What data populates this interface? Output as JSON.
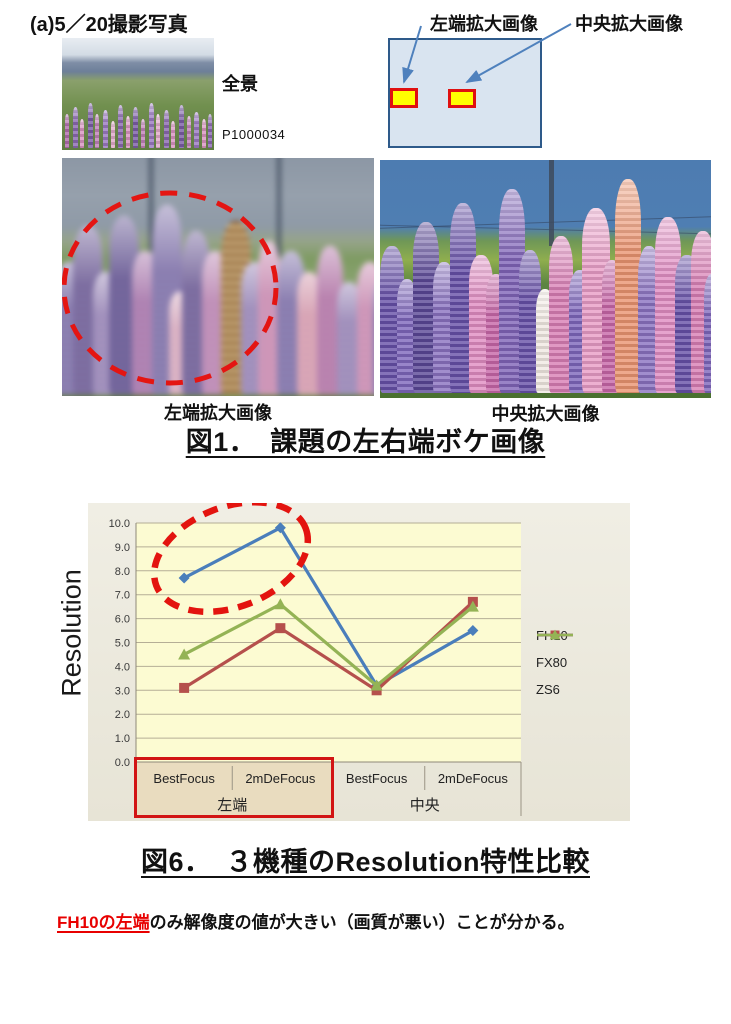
{
  "header": {
    "section_label": "(a)5／20撮影写真"
  },
  "overview": {
    "caption": "全景",
    "photo_id": "P1000034"
  },
  "frame_diagram": {
    "left_label": "左端拡大画像",
    "center_label": "中央拡大画像"
  },
  "figure1": {
    "left_caption": "左端拡大画像",
    "center_caption": "中央拡大画像",
    "title": "図1．　課題の左右端ボケ画像"
  },
  "chart_data": {
    "type": "line",
    "title": "",
    "xlabel": "",
    "ylabel": "Resolution",
    "ylim": [
      0,
      10
    ],
    "ytick_step": 1,
    "categories": [
      "BestFocus",
      "2mDeFocus",
      "BestFocus",
      "2mDeFocus"
    ],
    "groups": [
      {
        "label": "左端",
        "span": [
          0,
          1
        ],
        "highlighted": true
      },
      {
        "label": "中央",
        "span": [
          2,
          3
        ],
        "highlighted": false
      }
    ],
    "series": [
      {
        "name": "FH10",
        "marker": "diamond",
        "color": "#4a7ebb",
        "values": [
          7.7,
          9.8,
          3.2,
          5.5
        ]
      },
      {
        "name": "FX80",
        "marker": "square",
        "color": "#b5504c",
        "values": [
          3.1,
          5.6,
          3.0,
          6.7
        ]
      },
      {
        "name": "ZS6",
        "marker": "triangle",
        "color": "#94b355",
        "values": [
          4.5,
          6.6,
          3.2,
          6.5
        ]
      }
    ],
    "legend_position": "right",
    "grid": true,
    "plot_bg": "#fcfbd2",
    "chart_bg": "#edebe0",
    "highlight_color": "#d92b1c",
    "annotations": [
      "red dashed ellipse around FH10 left-edge data points",
      "red box around 左端 category group on x-axis"
    ]
  },
  "figure6": {
    "title": "図6．　３機種のResolution特性比較"
  },
  "note": {
    "highlight": "FH10の左端",
    "rest": "のみ解像度の値が大きい（画質が悪い）ことが分かる。"
  }
}
